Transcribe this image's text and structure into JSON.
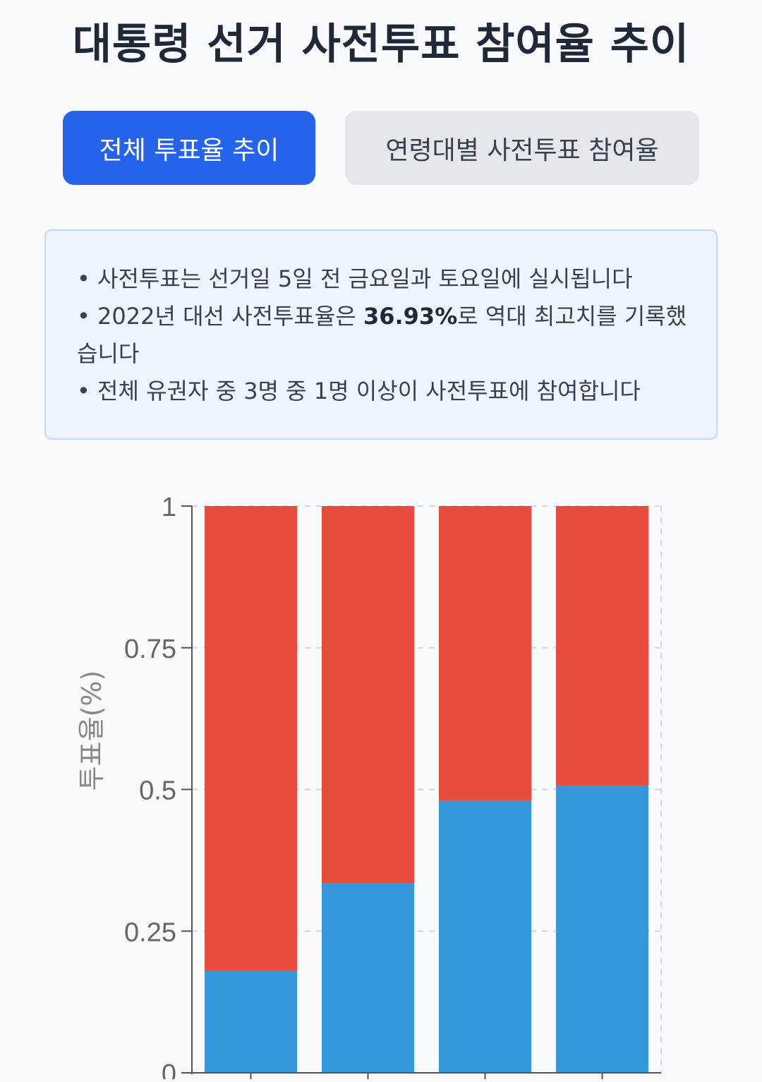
{
  "title": "대통령 선거 사전투표 참여율 추이",
  "tabs": [
    {
      "label": "전체 투표율 추이",
      "active": true
    },
    {
      "label": "연령대별 사전투표 참여율",
      "active": false
    }
  ],
  "info": {
    "line1": "사전투표는 선거일 5일 전 금요일과 토요일에 실시됩니다",
    "line2_prefix": "2022년 대선 사전투표율은 ",
    "line2_bold": "36.93%",
    "line2_suffix": "로 역대 최고치를 기록했습니다",
    "line3": "전체 유권자 중 3명 중 1명 이상이 사전투표에 참여합니다"
  },
  "colors": {
    "accent": "#2563eb",
    "series_blue": "#3498db",
    "series_red": "#e74c3c"
  },
  "chart_data": {
    "type": "bar",
    "stacked": true,
    "ylabel": "투표율(%)",
    "ylim": [
      0,
      1
    ],
    "yticks": [
      "0",
      "0.25",
      "0.5",
      "0.75",
      "1"
    ],
    "categories": [
      "",
      "",
      "",
      ""
    ],
    "series": [
      {
        "values": [
          0.18,
          0.335,
          0.48,
          0.507
        ]
      },
      {
        "values": [
          0.82,
          0.665,
          0.52,
          0.493
        ]
      }
    ],
    "grid": true
  }
}
